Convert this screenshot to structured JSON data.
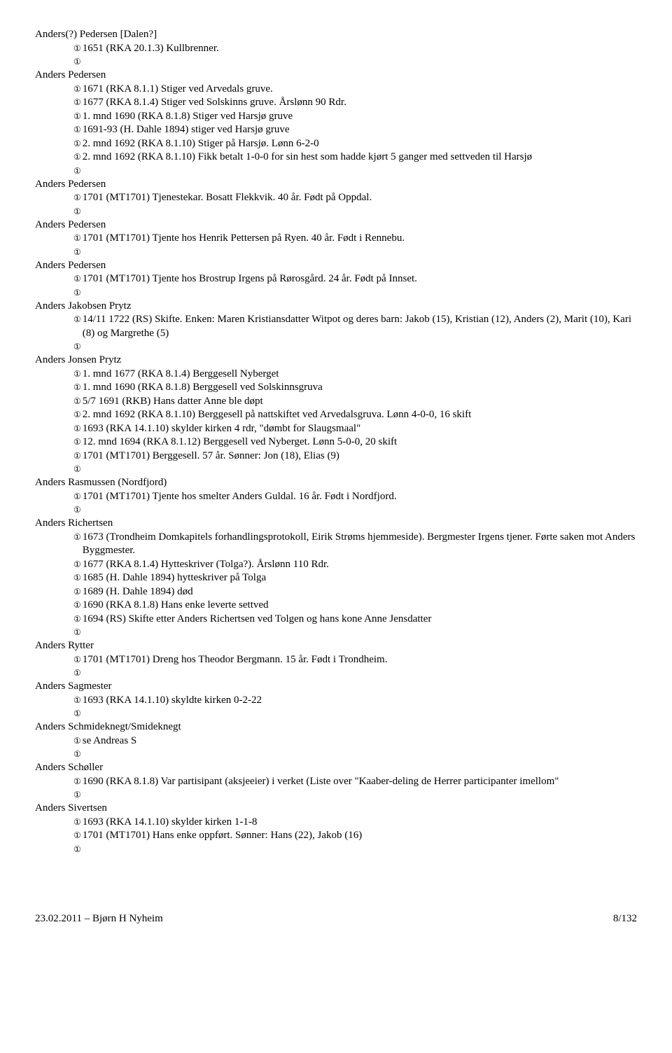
{
  "people": [
    {
      "name": "Anders(?) Pedersen [Dalen?]",
      "entries": [
        {
          "text": "1651 (RKA 20.1.3) Kullbrenner."
        }
      ]
    },
    {
      "name": "Anders Pedersen",
      "entries": [
        {
          "text": "1671 (RKA 8.1.1) Stiger ved Arvedals gruve."
        },
        {
          "text": "1677 (RKA 8.1.4) Stiger ved Solskinns gruve. Årslønn 90 Rdr."
        },
        {
          "text": "1. mnd 1690 (RKA 8.1.8) Stiger ved Harsjø gruve"
        },
        {
          "text": "1691-93 (H. Dahle 1894) stiger ved Harsjø gruve"
        },
        {
          "text": "2. mnd 1692 (RKA 8.1.10) Stiger på Harsjø. Lønn 6-2-0"
        },
        {
          "text": "2. mnd 1692 (RKA 8.1.10) Fikk betalt 1-0-0 for sin hest som hadde kjørt 5 ganger med settveden til Harsjø"
        }
      ]
    },
    {
      "name": "Anders Pedersen",
      "entries": [
        {
          "text": "1701 (MT1701) Tjenestekar. Bosatt Flekkvik. 40 år. Født på Oppdal."
        }
      ]
    },
    {
      "name": "Anders Pedersen",
      "entries": [
        {
          "text": "1701 (MT1701) Tjente hos Henrik Pettersen på Ryen. 40 år. Født i Rennebu."
        }
      ]
    },
    {
      "name": "Anders Pedersen",
      "entries": [
        {
          "text": "1701 (MT1701) Tjente hos Brostrup Irgens på Rørosgård. 24 år. Født på Innset."
        }
      ]
    },
    {
      "name": "Anders Jakobsen Prytz",
      "entries": [
        {
          "text": "14/11 1722 (RS) Skifte. Enken: Maren Kristiansdatter Witpot og deres barn: Jakob (15), Kristian (12), Anders (2), Marit (10), Kari (8) og Margrethe (5)",
          "wrap": true
        }
      ]
    },
    {
      "name": "Anders Jonsen Prytz",
      "entries": [
        {
          "text": "1. mnd 1677 (RKA 8.1.4) Berggesell Nyberget"
        },
        {
          "text": "1. mnd 1690 (RKA 8.1.8) Berggesell ved Solskinnsgruva"
        },
        {
          "text": "5/7 1691 (RKB) Hans datter Anne ble døpt"
        },
        {
          "text": "2. mnd 1692 (RKA 8.1.10) Berggesell på nattskiftet ved Arvedalsgruva. Lønn 4-0-0, 16 skift"
        },
        {
          "text": "1693 (RKA 14.1.10) skylder kirken 4 rdr, \"dømbt for Slaugsmaal\""
        },
        {
          "text": "12. mnd 1694 (RKA 8.1.12) Berggesell ved Nyberget. Lønn 5-0-0, 20 skift"
        },
        {
          "text": "1701 (MT1701) Berggesell. 57 år. Sønner: Jon (18), Elias (9)"
        }
      ]
    },
    {
      "name": "Anders Rasmussen (Nordfjord)",
      "entries": [
        {
          "text": "1701 (MT1701) Tjente hos smelter Anders Guldal. 16 år. Født i Nordfjord."
        }
      ]
    },
    {
      "name": "Anders Richertsen",
      "entries": [
        {
          "text": "1673 (Trondheim Domkapitels forhandlingsprotokoll, Eirik Strøms hjemmeside). Bergmester Irgens tjener. Førte saken mot Anders Byggmester.",
          "wrap": true
        },
        {
          "text": "1677 (RKA 8.1.4) Hytteskriver (Tolga?). Årslønn 110 Rdr."
        },
        {
          "text": "1685 (H. Dahle 1894) hytteskriver på Tolga"
        },
        {
          "text": "1689 (H. Dahle 1894) død"
        },
        {
          "text": "1690 (RKA 8.1.8) Hans enke leverte settved"
        },
        {
          "text": "1694 (RS) Skifte etter Anders Richertsen ved Tolgen og hans kone Anne Jensdatter"
        }
      ]
    },
    {
      "name": "Anders Rytter",
      "entries": [
        {
          "text": "1701 (MT1701) Dreng hos Theodor Bergmann. 15 år. Født i Trondheim."
        }
      ]
    },
    {
      "name": "Anders Sagmester",
      "entries": [
        {
          "text": "1693 (RKA 14.1.10) skyldte kirken 0-2-22"
        }
      ]
    },
    {
      "name": "Anders Schmideknegt/Smideknegt",
      "entries": [
        {
          "text": "se Andreas S"
        }
      ]
    },
    {
      "name": "Anders Schøller",
      "entries": [
        {
          "text": "1690 (RKA 8.1.8) Var partisipant (aksjeeier) i verket (Liste over \"Kaaber-deling de Herrer participanter imellom\"",
          "wrap": true
        }
      ]
    },
    {
      "name": "Anders Sivertsen",
      "entries": [
        {
          "text": "1693 (RKA 14.1.10) skylder kirken 1-1-8"
        },
        {
          "text": "1701 (MT1701) Hans enke oppført. Sønner: Hans (22), Jakob (16)"
        }
      ]
    }
  ],
  "bullet_glyph": "①",
  "footer": {
    "left": "23.02.2011 – Bjørn H Nyheim",
    "right": "8/132"
  }
}
